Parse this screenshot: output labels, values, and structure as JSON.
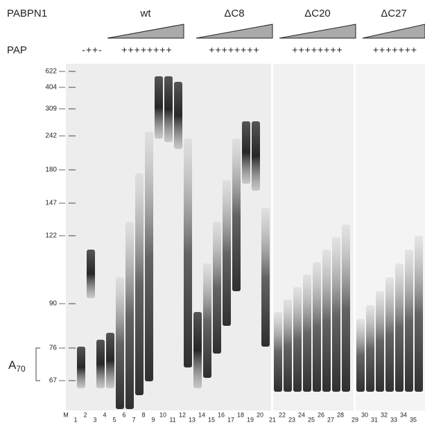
{
  "header": {
    "protein": "PABPN1",
    "groups": [
      "wt",
      "ΔC8",
      "ΔC20",
      "ΔC27"
    ],
    "pap_label": "PAP",
    "pap": [
      "-++-",
      "++++++++",
      "++++++++",
      "++++++++",
      "+++++++"
    ]
  },
  "markers": [
    "622",
    "404",
    "309",
    "242",
    "180",
    "147",
    "122",
    "90",
    "76",
    "67"
  ],
  "annotation": {
    "base": "A",
    "subscript": "70"
  },
  "lanes": [
    "M",
    "1",
    "2",
    "3",
    "4",
    "5",
    "6",
    "7",
    "8",
    "9",
    "10",
    "11",
    "12",
    "13",
    "14",
    "15",
    "16",
    "17",
    "18",
    "19",
    "20",
    "21",
    "22",
    "23",
    "24",
    "25",
    "26",
    "27",
    "28",
    "29",
    "30",
    "31",
    "32",
    "33",
    "34",
    "35"
  ]
}
